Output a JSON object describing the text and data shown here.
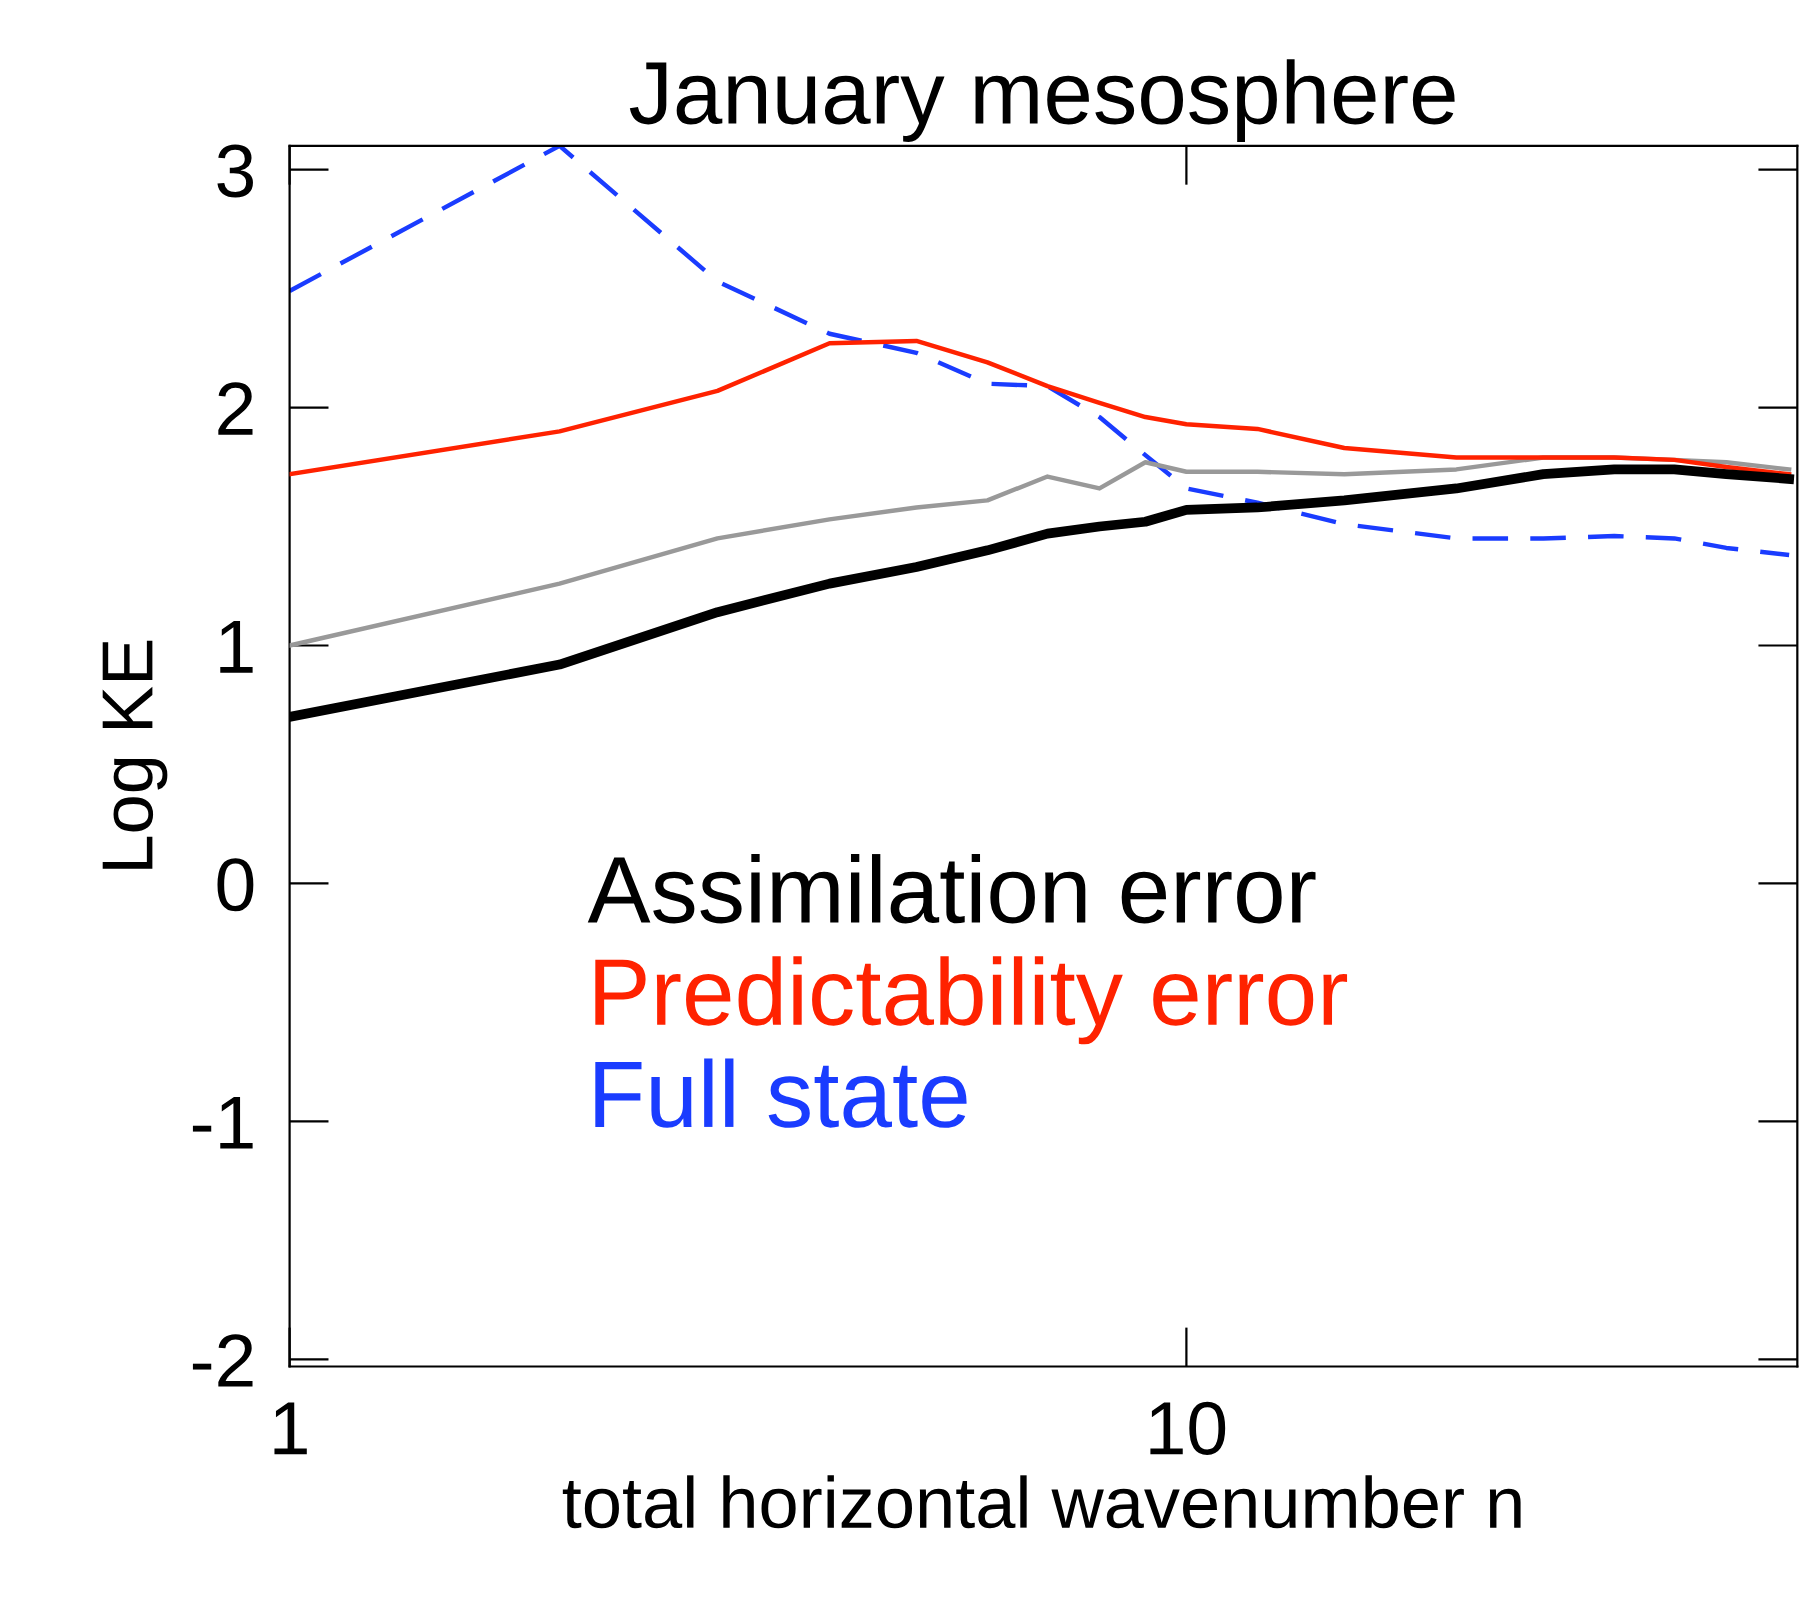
{
  "chart_data": {
    "type": "line",
    "title": "January mesosphere",
    "xlabel": "total horizontal wavenumber n",
    "ylabel": "Log KE",
    "log": "x",
    "xlim": [
      1,
      48
    ],
    "ylim": [
      -2.03,
      3.1
    ],
    "xticks": [
      1,
      10
    ],
    "yticks": [
      -2,
      -1,
      0,
      1,
      2,
      3
    ],
    "x": [
      1,
      2,
      3,
      4,
      5,
      6,
      7,
      8,
      9,
      10,
      12,
      15,
      20,
      25,
      30,
      35,
      40,
      47
    ],
    "legend": "center",
    "series": [
      {
        "name": "Full state",
        "color": "#1a3cff",
        "line_style": "dashed",
        "values": [
          2.49,
          3.1,
          2.53,
          2.31,
          2.23,
          2.1,
          2.09,
          1.96,
          1.8,
          1.66,
          1.6,
          1.51,
          1.45,
          1.45,
          1.46,
          1.45,
          1.41,
          1.38
        ]
      },
      {
        "color": "#999999",
        "values": [
          1.0,
          1.26,
          1.45,
          1.53,
          1.58,
          1.61,
          1.71,
          1.66,
          1.77,
          1.73,
          1.73,
          1.72,
          1.74,
          1.79,
          1.79,
          1.78,
          1.77,
          1.74
        ]
      },
      {
        "name": "Predictability error",
        "color": "#ff2200",
        "values": [
          1.72,
          1.9,
          2.07,
          2.27,
          2.28,
          2.19,
          2.09,
          2.02,
          1.96,
          1.93,
          1.91,
          1.83,
          1.79,
          1.79,
          1.79,
          1.78,
          1.75,
          1.72
        ]
      },
      {
        "name": "Assimilation error",
        "color": "#000000",
        "values": [
          0.7,
          0.92,
          1.14,
          1.26,
          1.33,
          1.4,
          1.47,
          1.5,
          1.52,
          1.57,
          1.58,
          1.61,
          1.66,
          1.72,
          1.74,
          1.74,
          1.72,
          1.7
        ]
      }
    ]
  }
}
